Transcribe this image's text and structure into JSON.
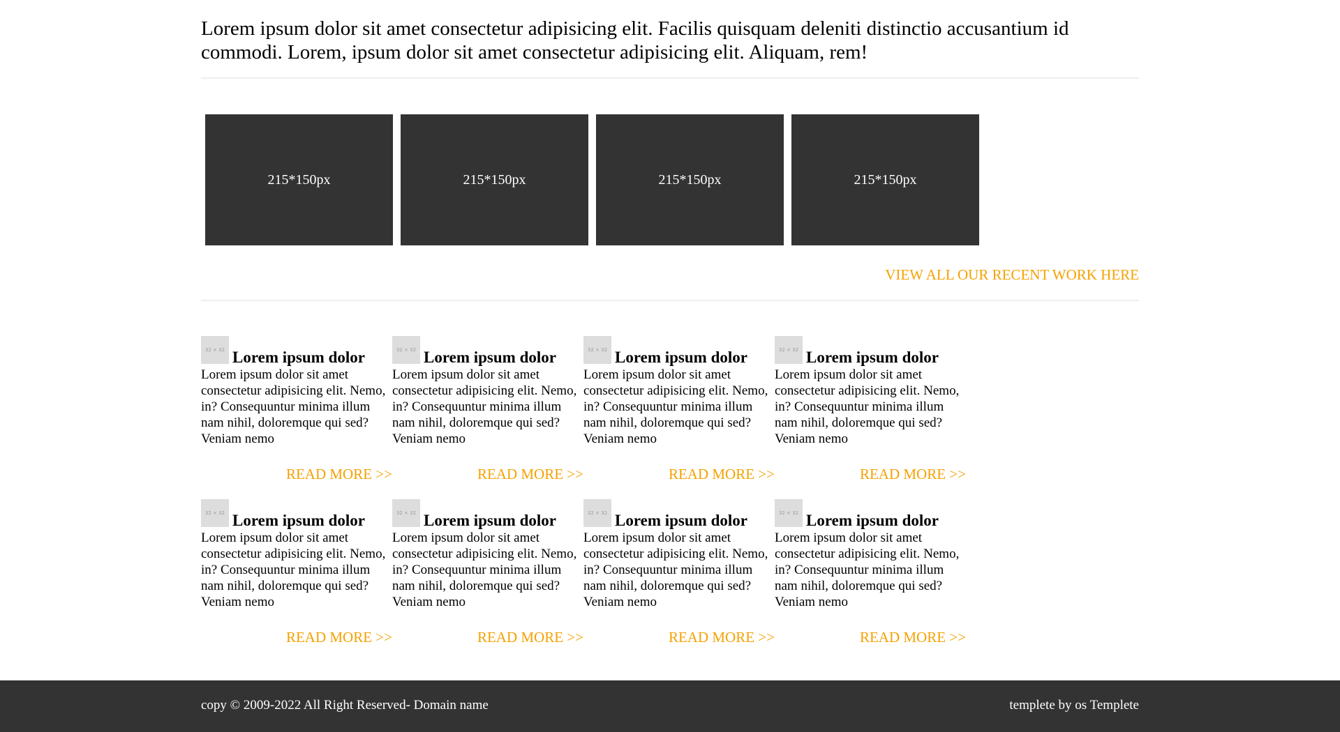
{
  "intro": {
    "text": "Lorem ipsum dolor sit amet consectetur adipisicing elit. Facilis quisquam deleniti distinctio accusantium id commodi. Lorem, ipsum dolor sit amet consectetur adipisicing elit. Aliquam, rem!"
  },
  "gallery": {
    "items": [
      {
        "label": "215*150px"
      },
      {
        "label": "215*150px"
      },
      {
        "label": "215*150px"
      },
      {
        "label": "215*150px"
      }
    ],
    "view_all_label": "VIEW ALL OUR RECENT WORK HERE"
  },
  "cards": [
    {
      "icon_label": "32 × 32",
      "title": "Lorem ipsum dolor",
      "text": "Lorem ipsum dolor sit amet consectetur adipisicing elit. Nemo, in? Consequuntur minima illum nam nihil, doloremque qui sed? Veniam nemo",
      "read_more": "READ MORE >>"
    },
    {
      "icon_label": "32 × 32",
      "title": "Lorem ipsum dolor",
      "text": "Lorem ipsum dolor sit amet consectetur adipisicing elit. Nemo, in? Consequuntur minima illum nam nihil, doloremque qui sed? Veniam nemo",
      "read_more": "READ MORE >>"
    },
    {
      "icon_label": "32 × 32",
      "title": "Lorem ipsum dolor",
      "text": "Lorem ipsum dolor sit amet consectetur adipisicing elit. Nemo, in? Consequuntur minima illum nam nihil, doloremque qui sed? Veniam nemo",
      "read_more": "READ MORE >>"
    },
    {
      "icon_label": "32 × 32",
      "title": "Lorem ipsum dolor",
      "text": "Lorem ipsum dolor sit amet consectetur adipisicing elit. Nemo, in? Consequuntur minima illum nam nihil, doloremque qui sed? Veniam nemo",
      "read_more": "READ MORE >>"
    },
    {
      "icon_label": "32 × 32",
      "title": "Lorem ipsum dolor",
      "text": "Lorem ipsum dolor sit amet consectetur adipisicing elit. Nemo, in? Consequuntur minima illum nam nihil, doloremque qui sed? Veniam nemo",
      "read_more": "READ MORE >>"
    },
    {
      "icon_label": "32 × 32",
      "title": "Lorem ipsum dolor",
      "text": "Lorem ipsum dolor sit amet consectetur adipisicing elit. Nemo, in? Consequuntur minima illum nam nihil, doloremque qui sed? Veniam nemo",
      "read_more": "READ MORE >>"
    },
    {
      "icon_label": "32 × 32",
      "title": "Lorem ipsum dolor",
      "text": "Lorem ipsum dolor sit amet consectetur adipisicing elit. Nemo, in? Consequuntur minima illum nam nihil, doloremque qui sed? Veniam nemo",
      "read_more": "READ MORE >>"
    },
    {
      "icon_label": "32 × 32",
      "title": "Lorem ipsum dolor",
      "text": "Lorem ipsum dolor sit amet consectetur adipisicing elit. Nemo, in? Consequuntur minima illum nam nihil, doloremque qui sed? Veniam nemo",
      "read_more": "READ MORE >>"
    }
  ],
  "footer": {
    "copyright": "copy © 2009-2022 All Right Reserved- Domain name",
    "credit": "templete by os Templete"
  },
  "colors": {
    "accent": "#f5a100",
    "dark": "#333333",
    "divider": "#eeeeee",
    "placeholder": "#dddddd"
  }
}
